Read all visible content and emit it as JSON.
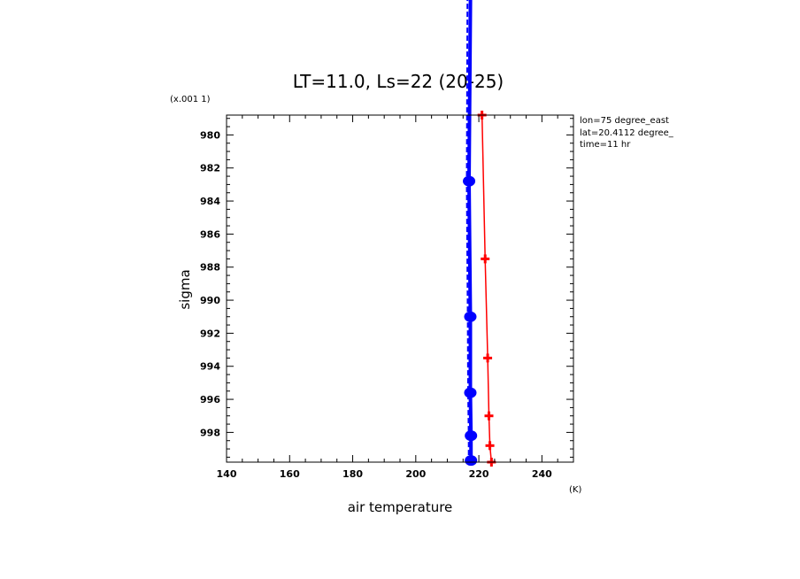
{
  "chart_data": {
    "type": "line",
    "title": "LT=11.0, Ls=22 (20-25)",
    "xlabel": "air temperature",
    "x_units": "(K)",
    "ylabel": "sigma",
    "y_scale_note": "(x.001 1)",
    "xlim": [
      140,
      250
    ],
    "ylim": [
      999.8,
      978.8
    ],
    "y_inverted": true,
    "x_ticks": [
      140,
      160,
      180,
      200,
      220,
      240
    ],
    "x_tick_labels": [
      "140",
      "160",
      "180",
      "200",
      "220",
      "240"
    ],
    "y_ticks": [
      980,
      982,
      984,
      986,
      988,
      990,
      992,
      994,
      996,
      998
    ],
    "y_tick_labels": [
      "980",
      "982",
      "984",
      "986",
      "988",
      "990",
      "992",
      "994",
      "996",
      "998"
    ],
    "annotations": [
      "lon=75 degree_east",
      "lat=20.4112 degree_",
      "time=11 hr"
    ],
    "grid": false,
    "series": [
      {
        "color": "#ff0000",
        "marker": "plus",
        "points": [
          [
            221.0,
            978.8
          ],
          [
            222.0,
            987.5
          ],
          [
            222.8,
            993.5
          ],
          [
            223.2,
            997.0
          ],
          [
            223.5,
            998.8
          ],
          [
            224.0,
            999.8
          ]
        ]
      },
      {
        "color": "#0000ff",
        "marker": "circle",
        "style": "solid",
        "points": [
          [
            217.8,
            960.0
          ],
          [
            216.9,
            982.8
          ],
          [
            217.3,
            991.0
          ],
          [
            217.3,
            995.6
          ],
          [
            217.5,
            998.2
          ],
          [
            217.5,
            999.7
          ]
        ]
      },
      {
        "color": "#0000ff",
        "style": "dashed",
        "points": [
          [
            216.6,
            960.0
          ],
          [
            216.2,
            983.0
          ],
          [
            216.5,
            991.0
          ],
          [
            216.6,
            995.6
          ],
          [
            216.8,
            998.2
          ],
          [
            216.8,
            999.7
          ]
        ]
      }
    ]
  }
}
